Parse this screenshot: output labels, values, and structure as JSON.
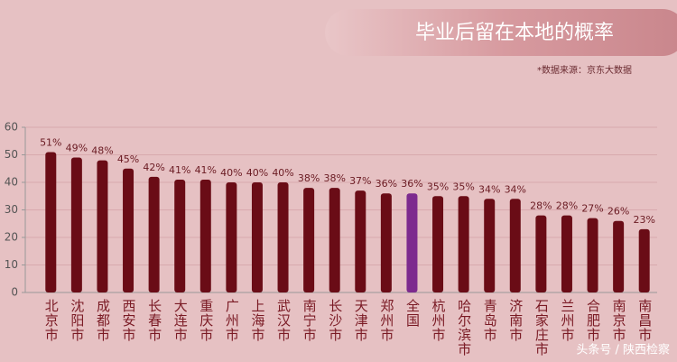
{
  "chart_data": {
    "type": "bar",
    "title": "毕业后留在本地的概率",
    "source": "*数据来源：京东大数据",
    "watermark": "头条号 / 陕西检察",
    "categories": [
      "北京市",
      "沈阳市",
      "成都市",
      "西安市",
      "长春市",
      "大连市",
      "重庆市",
      "广州市",
      "上海市",
      "武汉市",
      "南宁市",
      "长沙市",
      "天津市",
      "郑州市",
      "全国",
      "杭州市",
      "哈尔滨市",
      "青岛市",
      "济南市",
      "石家庄市",
      "兰州市",
      "合肥市",
      "南京市",
      "南昌市"
    ],
    "values": [
      51,
      49,
      48,
      45,
      42,
      41,
      41,
      40,
      40,
      40,
      38,
      38,
      37,
      36,
      36,
      35,
      35,
      34,
      34,
      28,
      28,
      27,
      26,
      23
    ],
    "value_labels": [
      "51%",
      "49%",
      "48%",
      "45%",
      "42%",
      "41%",
      "41%",
      "40%",
      "40%",
      "40%",
      "38%",
      "38%",
      "37%",
      "36%",
      "36%",
      "35%",
      "35%",
      "34%",
      "34%",
      "28%",
      "28%",
      "27%",
      "26%",
      "23%"
    ],
    "colors": [
      "#6a0c16",
      "#6a0c16",
      "#6a0c16",
      "#6a0c16",
      "#6a0c16",
      "#6a0c16",
      "#6a0c16",
      "#6a0c16",
      "#6a0c16",
      "#6a0c16",
      "#6a0c16",
      "#6a0c16",
      "#6a0c16",
      "#6a0c16",
      "#7d2a8e",
      "#6a0c16",
      "#6a0c16",
      "#6a0c16",
      "#6a0c16",
      "#6a0c16",
      "#6a0c16",
      "#6a0c16",
      "#6a0c16",
      "#6a0c16"
    ],
    "ylim": [
      0,
      60
    ],
    "yticks": [
      0,
      10,
      20,
      30,
      40,
      50,
      60
    ],
    "grid": true
  }
}
